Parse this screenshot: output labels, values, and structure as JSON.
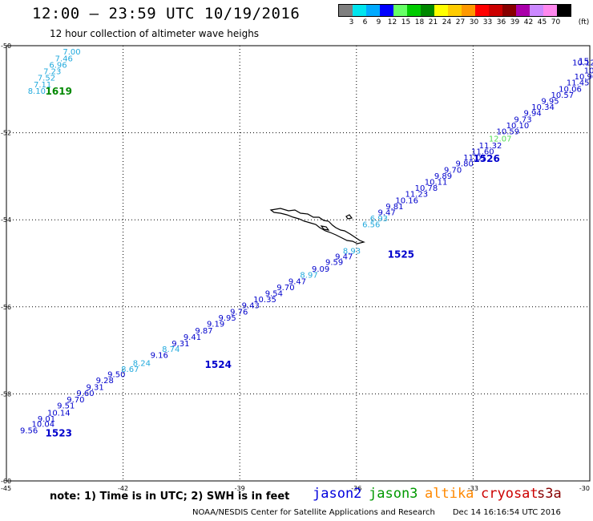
{
  "title": "12:00 – 23:59 UTC 10/19/2016",
  "subtitle": "12 hour collection of altimeter wave heighs",
  "legend": {
    "labels": [
      "3",
      "6",
      "9",
      "12",
      "15",
      "18",
      "21",
      "24",
      "27",
      "30",
      "33",
      "36",
      "39",
      "42",
      "45",
      "70"
    ],
    "units": "(ft)",
    "colors": [
      "#7f7f7f",
      "#00e5ee",
      "#00aaff",
      "#0000ff",
      "#66ff66",
      "#00cc00",
      "#008800",
      "#ffff00",
      "#ffcc00",
      "#ff9900",
      "#ff0000",
      "#cc0000",
      "#880000",
      "#aa00aa",
      "#cc88ff",
      "#ff88ee",
      "#000000"
    ]
  },
  "axes": {
    "lat_labels": [
      "-50",
      "-52",
      "-54",
      "-56",
      "-58",
      "-60"
    ],
    "lon_labels": [
      "-45",
      "-42",
      "-39",
      "-36",
      "-33",
      "-30"
    ]
  },
  "chart_data": {
    "type": "scatter",
    "note": "Significant wave height (ft) along altimeter ground tracks",
    "tracks": [
      {
        "id": "1619",
        "satellite": "jason3",
        "label_color": "#008800",
        "label_lon": -44.0,
        "label_lat": -51.05,
        "points": [
          {
            "lon": -44.45,
            "lat": -51.05,
            "v": "8.10"
          },
          {
            "lon": -44.3,
            "lat": -50.9,
            "v": "7.11"
          },
          {
            "lon": -44.2,
            "lat": -50.75,
            "v": "7.52"
          },
          {
            "lon": -44.05,
            "lat": -50.6,
            "v": "7.23"
          },
          {
            "lon": -43.9,
            "lat": -50.45,
            "v": "6.96"
          },
          {
            "lon": -43.75,
            "lat": -50.3,
            "v": "7.46"
          },
          {
            "lon": -43.55,
            "lat": -50.15,
            "v": "7.00"
          }
        ]
      },
      {
        "id": "1523",
        "satellite": "jason2",
        "label_color": "#0000cc",
        "label_lon": -44.0,
        "label_lat": -58.9,
        "points": [
          {
            "lon": -44.65,
            "lat": -58.85,
            "v": "9.56"
          },
          {
            "lon": -44.35,
            "lat": -58.7,
            "v": "10.04"
          },
          {
            "lon": -44.2,
            "lat": -58.58,
            "v": "9.01"
          },
          {
            "lon": -43.95,
            "lat": -58.44,
            "v": "10.14"
          },
          {
            "lon": -43.7,
            "lat": -58.28,
            "v": "9.51"
          },
          {
            "lon": -43.45,
            "lat": -58.14,
            "v": "9.70"
          },
          {
            "lon": -43.2,
            "lat": -57.99,
            "v": "9.60"
          },
          {
            "lon": -42.95,
            "lat": -57.85,
            "v": "9.31"
          },
          {
            "lon": -42.7,
            "lat": -57.7,
            "v": "9.28"
          },
          {
            "lon": -42.4,
            "lat": -57.56,
            "v": "9.50"
          }
        ]
      },
      {
        "id": "1524",
        "satellite": "jason2",
        "label_color": "#0000cc",
        "label_lon": -39.9,
        "label_lat": -57.33,
        "points": [
          {
            "lon": -42.05,
            "lat": -57.44,
            "v": "8.67"
          },
          {
            "lon": -41.75,
            "lat": -57.3,
            "v": "8.24"
          },
          {
            "lon": -41.3,
            "lat": -57.12,
            "v": "9.16"
          },
          {
            "lon": -41.0,
            "lat": -56.98,
            "v": "8.74"
          },
          {
            "lon": -40.75,
            "lat": -56.85,
            "v": "9.31"
          },
          {
            "lon": -40.45,
            "lat": -56.7,
            "v": "9.41"
          },
          {
            "lon": -40.15,
            "lat": -56.56,
            "v": "9.87"
          },
          {
            "lon": -39.85,
            "lat": -56.4,
            "v": "9.19"
          },
          {
            "lon": -39.55,
            "lat": -56.26,
            "v": "9.95"
          },
          {
            "lon": -39.25,
            "lat": -56.12,
            "v": "9.76"
          },
          {
            "lon": -38.95,
            "lat": -55.98,
            "v": "9.43"
          },
          {
            "lon": -38.65,
            "lat": -55.84,
            "v": "10.35"
          },
          {
            "lon": -38.35,
            "lat": -55.7,
            "v": "9.54"
          },
          {
            "lon": -38.05,
            "lat": -55.56,
            "v": "9.70"
          },
          {
            "lon": -37.75,
            "lat": -55.42,
            "v": "9.47"
          },
          {
            "lon": -37.45,
            "lat": -55.28,
            "v": "8.97"
          },
          {
            "lon": -37.15,
            "lat": -55.14,
            "v": "9.09"
          },
          {
            "lon": -36.8,
            "lat": -54.98,
            "v": "9.59"
          },
          {
            "lon": -36.55,
            "lat": -54.85,
            "v": "9.47"
          },
          {
            "lon": -36.35,
            "lat": -54.72,
            "v": "8.93"
          }
        ]
      },
      {
        "id": "1525",
        "satellite": "jason2",
        "label_color": "#0000cc",
        "label_lon": -35.2,
        "label_lat": -54.8,
        "points": [
          {
            "lon": -35.85,
            "lat": -54.12,
            "v": "6.56"
          },
          {
            "lon": -35.65,
            "lat": -53.98,
            "v": "6.93"
          },
          {
            "lon": -35.45,
            "lat": -53.84,
            "v": "9.47"
          },
          {
            "lon": -35.25,
            "lat": -53.7,
            "v": "9.81"
          },
          {
            "lon": -35.0,
            "lat": -53.56,
            "v": "10.16"
          },
          {
            "lon": -34.75,
            "lat": -53.42,
            "v": "11.23"
          },
          {
            "lon": -34.5,
            "lat": -53.28,
            "v": "10.78"
          },
          {
            "lon": -34.25,
            "lat": -53.14,
            "v": "10.11"
          },
          {
            "lon": -34.0,
            "lat": -53.0,
            "v": "9.89"
          },
          {
            "lon": -33.75,
            "lat": -52.86,
            "v": "9.70"
          }
        ]
      },
      {
        "id": "1526",
        "satellite": "jason2",
        "label_color": "#0000cc",
        "label_lon": -33.0,
        "label_lat": -52.6,
        "points": [
          {
            "lon": -33.45,
            "lat": -52.72,
            "v": "9.80"
          },
          {
            "lon": -33.25,
            "lat": -52.58,
            "v": "11.01"
          },
          {
            "lon": -33.05,
            "lat": -52.44,
            "v": "11.60"
          },
          {
            "lon": -32.85,
            "lat": -52.3,
            "v": "11.32"
          },
          {
            "lon": -32.6,
            "lat": -52.15,
            "v": "12.07"
          },
          {
            "lon": -32.4,
            "lat": -51.98,
            "v": "10.59"
          },
          {
            "lon": -32.15,
            "lat": -51.84,
            "v": "10.10"
          },
          {
            "lon": -31.95,
            "lat": -51.7,
            "v": "9.73"
          },
          {
            "lon": -31.7,
            "lat": -51.56,
            "v": "9.94"
          },
          {
            "lon": -31.5,
            "lat": -51.42,
            "v": "10.34"
          },
          {
            "lon": -31.25,
            "lat": -51.28,
            "v": "9.95"
          },
          {
            "lon": -31.0,
            "lat": -51.14,
            "v": "10.57"
          },
          {
            "lon": -30.8,
            "lat": -51.0,
            "v": "10.06"
          },
          {
            "lon": -30.6,
            "lat": -50.86,
            "v": "11.45"
          },
          {
            "lon": -30.4,
            "lat": -50.72,
            "v": "10.90"
          },
          {
            "lon": -30.15,
            "lat": -50.58,
            "v": "10.90"
          },
          {
            "lon": -30.45,
            "lat": -50.4,
            "v": "10.12"
          }
        ]
      }
    ],
    "edge_label": {
      "text": "15",
      "lon": -30.05,
      "lat": -50.38
    }
  },
  "footer": {
    "note": "note:  1) Time is in UTC;  2) SWH is in feet",
    "satellites": [
      {
        "name": "jason2",
        "color": "#0000dd"
      },
      {
        "name": "jason3",
        "color": "#009900"
      },
      {
        "name": "altika",
        "color": "#ff8800"
      },
      {
        "name": "cryosat",
        "color": "#cc0000"
      },
      {
        "name": "s3a",
        "color": "#880000"
      }
    ],
    "credit": "NOAA/NESDIS Center for Satellite Applications and Research",
    "timestamp": "Dec 14 16:16:54 UTC 2016"
  }
}
